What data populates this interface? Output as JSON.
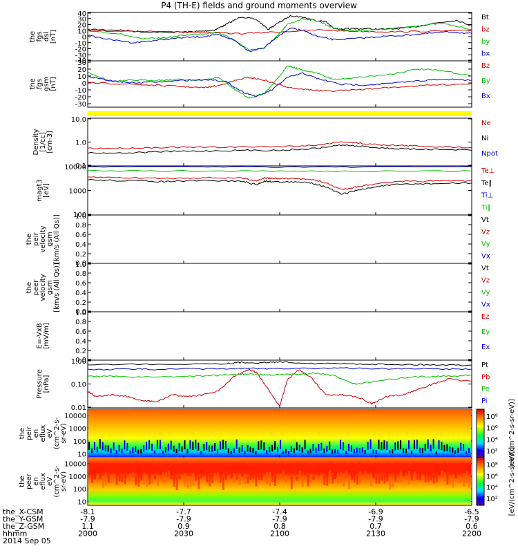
{
  "title": "P4 (TH-E) fields and ground moments overview",
  "chart_data": {
    "type": "line",
    "time_axis": {
      "rows": [
        {
          "label": "the_X-CSM",
          "values": [
            "-8.1",
            "-7.7",
            "-7.4",
            "-6.9",
            "-6.5"
          ]
        },
        {
          "label": "the_Y-GSM",
          "values": [
            "-7.9",
            "-7.9",
            "-7.9",
            "-7.9",
            "-7.9"
          ]
        },
        {
          "label": "the_Z-GSM",
          "values": [
            "1.1",
            "0.9",
            "0.8",
            "0.7",
            "0.6"
          ]
        },
        {
          "label": "hhmm",
          "values": [
            "2000",
            "2030",
            "2100",
            "2130",
            "2200"
          ]
        }
      ],
      "date": "2014 Sep 05"
    },
    "panels": [
      {
        "id": "fgs-dsl",
        "ylabel": [
          "the",
          "fgs",
          "dsl",
          "[nT]"
        ],
        "ticks": [
          "40",
          "30",
          "20",
          "10",
          "0",
          "-10",
          "-20",
          "-30",
          "-40"
        ],
        "ylim": [
          -40,
          40
        ],
        "legend": [
          {
            "name": "Bt",
            "color": "#000000"
          },
          {
            "name": "bz",
            "color": "#d00000"
          },
          {
            "name": "by",
            "color": "#00c000"
          },
          {
            "name": "bx",
            "color": "#0000d0"
          }
        ]
      },
      {
        "id": "fgs-gsm",
        "ylabel": [
          "the",
          "fgs",
          "gsm",
          "[nT]"
        ],
        "ticks": [
          "30",
          "20",
          "10",
          "0",
          "-10",
          "-20",
          "-30"
        ],
        "ylim": [
          -35,
          32
        ],
        "legend": [
          {
            "name": "Bz",
            "color": "#d00000"
          },
          {
            "name": "By",
            "color": "#00c000"
          },
          {
            "name": "Bx",
            "color": "#0000d0"
          }
        ]
      },
      {
        "id": "density",
        "ylabel": [
          "Density",
          "[1/cc]",
          "[cm-3]"
        ],
        "ticks": [
          "10.0",
          "1.0",
          "0.1"
        ],
        "ylim": [
          0.1,
          10
        ],
        "log": true,
        "legend": [
          {
            "name": "Ne",
            "color": "#d00000"
          },
          {
            "name": "Ni",
            "color": "#000000"
          },
          {
            "name": "Npot",
            "color": "#0000d0"
          }
        ]
      },
      {
        "id": "temperature",
        "ylabel": [
          "magt3",
          "[eV]"
        ],
        "ticks": [
          "10000",
          "1000",
          "100"
        ],
        "ylim": [
          100,
          10000
        ],
        "log": true,
        "legend": [
          {
            "name": "Te⊥",
            "color": "#d00000"
          },
          {
            "name": "Te∥",
            "color": "#000000"
          },
          {
            "name": "Ti⊥",
            "color": "#0000d0"
          },
          {
            "name": "Ti∥",
            "color": "#00c000"
          }
        ]
      },
      {
        "id": "peir-velocity",
        "ylabel": [
          "the",
          "peir",
          "velocity",
          "gsm",
          "[km/s (All Qs)]"
        ],
        "ticks": [
          "1.0",
          "0.8",
          "0.6",
          "0.4",
          "0.2",
          "0.0"
        ],
        "ylim": [
          0,
          1
        ],
        "legend": [
          {
            "name": "Vt",
            "color": "#000000"
          },
          {
            "name": "Vz",
            "color": "#d00000"
          },
          {
            "name": "Vy",
            "color": "#00c000"
          },
          {
            "name": "Vx",
            "color": "#0000d0"
          }
        ]
      },
      {
        "id": "peer-velocity",
        "ylabel": [
          "the",
          "peer",
          "velocity",
          "gsm",
          "[km/s (All Qs)]"
        ],
        "ticks": [
          "1.0",
          "0.8",
          "0.6",
          "0.4",
          "0.2",
          "0.0"
        ],
        "ylim": [
          0,
          1
        ],
        "legend": [
          {
            "name": "Vt",
            "color": "#000000"
          },
          {
            "name": "Vz",
            "color": "#d00000"
          },
          {
            "name": "Vy",
            "color": "#00c000"
          },
          {
            "name": "Vx",
            "color": "#0000d0"
          }
        ]
      },
      {
        "id": "efield",
        "ylabel": [
          "E=-VxB",
          "[mV/m]"
        ],
        "ticks": [
          "1.0",
          "0.8",
          "0.6",
          "0.4",
          "0.2",
          "0.0"
        ],
        "ylim": [
          0,
          1
        ],
        "legend": [
          {
            "name": "Ez",
            "color": "#d00000"
          },
          {
            "name": "Ey",
            "color": "#00c000"
          },
          {
            "name": "Ex",
            "color": "#0000d0"
          }
        ]
      },
      {
        "id": "pressure",
        "ylabel": [
          "Pressure",
          "[nPa]"
        ],
        "ticks": [
          "1.00",
          "0.10",
          "0.01"
        ],
        "ylim": [
          0.01,
          1
        ],
        "log": true,
        "legend": [
          {
            "name": "Pt",
            "color": "#000000"
          },
          {
            "name": "Pb",
            "color": "#d00000"
          },
          {
            "name": "Pe",
            "color": "#00c000"
          },
          {
            "name": "Pi",
            "color": "#0000d0"
          }
        ]
      },
      {
        "id": "peir-eflux",
        "ylabel": [
          "the",
          "peir",
          "en",
          "eflux",
          "eV",
          "(cm^2-s-",
          "sr-eV)"
        ],
        "ticks": [
          "10000",
          "1000",
          "100",
          "10"
        ],
        "ylim": [
          5,
          30000
        ],
        "log": true
      },
      {
        "id": "peer-eflux",
        "ylabel": [
          "the",
          "peer",
          "en",
          "eflux",
          "eV",
          "(cm^2-s-",
          "sr-eV)"
        ],
        "ticks": [
          "10000",
          "1000",
          "100",
          "10"
        ],
        "ylim": [
          5,
          30000
        ],
        "log": true
      }
    ],
    "colorbars": [
      {
        "ticks": [
          "10⁸",
          "10⁶",
          "10⁴",
          "10²"
        ],
        "label": "[eV/(cm^2-s-sr-eV)]"
      },
      {
        "ticks": [
          "10⁸",
          "10⁶",
          "10⁴",
          "10²"
        ],
        "label": "[eV/(cm^2-s-sr-eV)]"
      }
    ],
    "series": [
      {
        "panel": "fgs-dsl",
        "name": "Bt",
        "color": "#000000",
        "x": [
          0,
          8,
          14,
          20,
          26,
          30,
          33,
          36,
          40,
          44,
          47,
          50,
          53,
          56,
          60,
          62,
          64,
          66,
          68,
          72,
          78,
          84,
          90,
          96,
          100
        ],
        "y": [
          12,
          11,
          8,
          7,
          8,
          9,
          11,
          20,
          33,
          28,
          12,
          24,
          35,
          32,
          26,
          25,
          14,
          12,
          13,
          13,
          12,
          15,
          22,
          27,
          18
        ]
      },
      {
        "panel": "fgs-dsl",
        "name": "bz",
        "color": "#d00000",
        "x": [
          0,
          15,
          30,
          40,
          50,
          60,
          70,
          80,
          90,
          100
        ],
        "y": [
          10,
          9,
          7,
          5,
          8,
          11,
          9,
          8,
          9,
          10
        ]
      },
      {
        "panel": "fgs-dsl",
        "name": "by",
        "color": "#00c000",
        "x": [
          0,
          8,
          14,
          20,
          26,
          30,
          34,
          38,
          42,
          46,
          50,
          52,
          56,
          60,
          64,
          68,
          74,
          80,
          86,
          92,
          100
        ],
        "y": [
          10,
          5,
          -4,
          -2,
          3,
          5,
          7,
          -5,
          -22,
          -19,
          5,
          20,
          30,
          26,
          14,
          10,
          11,
          14,
          18,
          22,
          12
        ]
      },
      {
        "panel": "fgs-dsl",
        "name": "bx",
        "color": "#0000d0",
        "x": [
          0,
          6,
          12,
          18,
          24,
          30,
          34,
          38,
          42,
          46,
          50,
          53,
          56,
          60,
          64,
          70,
          76,
          82,
          88,
          94,
          100
        ],
        "y": [
          2,
          -5,
          -10,
          -6,
          -2,
          0,
          3,
          -5,
          -24,
          -18,
          3,
          14,
          10,
          0,
          -5,
          -3,
          0,
          2,
          5,
          8,
          5
        ]
      },
      {
        "panel": "fgs-gsm",
        "name": "Bz",
        "color": "#d00000",
        "x": [
          0,
          8,
          16,
          24,
          30,
          34,
          38,
          42,
          46,
          50,
          54,
          58,
          62,
          70,
          80,
          90,
          100
        ],
        "y": [
          0,
          -1,
          -3,
          -5,
          -7,
          -4,
          3,
          8,
          4,
          -3,
          -8,
          -10,
          -12,
          -10,
          -6,
          -3,
          -1
        ]
      },
      {
        "panel": "fgs-gsm",
        "name": "By",
        "color": "#00c000",
        "x": [
          0,
          6,
          12,
          18,
          24,
          30,
          34,
          38,
          42,
          46,
          50,
          52,
          54,
          56,
          60,
          64,
          70,
          78,
          86,
          92,
          100
        ],
        "y": [
          16,
          2,
          4,
          4,
          5,
          4,
          8,
          -8,
          -22,
          -15,
          10,
          25,
          22,
          18,
          14,
          5,
          8,
          12,
          20,
          18,
          10
        ]
      },
      {
        "panel": "fgs-gsm",
        "name": "Bx",
        "color": "#0000d0",
        "x": [
          0,
          6,
          12,
          20,
          26,
          32,
          36,
          40,
          44,
          48,
          52,
          56,
          60,
          66,
          72,
          80,
          88,
          94,
          100
        ],
        "y": [
          10,
          3,
          0,
          2,
          4,
          5,
          2,
          -12,
          -20,
          -10,
          8,
          14,
          6,
          -2,
          -3,
          0,
          4,
          5,
          4
        ]
      },
      {
        "panel": "density",
        "name": "Ne",
        "color": "#d00000",
        "x": [
          0,
          10,
          20,
          30,
          40,
          50,
          60,
          66,
          72,
          78,
          84,
          90,
          100
        ],
        "y": [
          0.55,
          0.55,
          0.6,
          0.6,
          0.62,
          0.65,
          0.75,
          1.05,
          0.85,
          0.75,
          0.7,
          0.65,
          0.6
        ]
      },
      {
        "panel": "density",
        "name": "Ni",
        "color": "#000000",
        "x": [
          0,
          10,
          20,
          30,
          40,
          50,
          60,
          66,
          72,
          78,
          84,
          90,
          100
        ],
        "y": [
          0.35,
          0.35,
          0.4,
          0.42,
          0.45,
          0.45,
          0.55,
          0.75,
          0.65,
          0.55,
          0.5,
          0.5,
          0.45
        ]
      },
      {
        "panel": "temperature",
        "name": "Te⊥",
        "color": "#d00000",
        "x": [
          0,
          10,
          20,
          30,
          40,
          44,
          46,
          48,
          52,
          58,
          62,
          66,
          70,
          76,
          82,
          90,
          100
        ],
        "y": [
          3500,
          3300,
          3100,
          3300,
          3200,
          2500,
          3200,
          3100,
          3000,
          2900,
          2000,
          1100,
          1400,
          2000,
          2300,
          2400,
          2500
        ]
      },
      {
        "panel": "temperature",
        "name": "Te∥",
        "color": "#000000",
        "x": [
          0,
          10,
          20,
          30,
          40,
          44,
          46,
          48,
          52,
          58,
          62,
          66,
          70,
          76,
          82,
          90,
          100
        ],
        "y": [
          2700,
          2500,
          2300,
          2500,
          2400,
          1700,
          2400,
          2300,
          2200,
          2100,
          1400,
          700,
          1000,
          1500,
          1800,
          1900,
          2000
        ]
      },
      {
        "panel": "temperature",
        "name": "Ti⊥",
        "color": "#0000d0",
        "x": [
          0,
          25,
          50,
          75,
          100
        ],
        "y": [
          9500,
          9300,
          9200,
          9200,
          9400
        ]
      },
      {
        "panel": "temperature",
        "name": "Ti∥",
        "color": "#00c000",
        "x": [
          0,
          25,
          50,
          75,
          100
        ],
        "y": [
          6300,
          6200,
          6000,
          6100,
          6200
        ]
      },
      {
        "panel": "pressure",
        "name": "Pt",
        "color": "#000000",
        "x": [
          0,
          20,
          36,
          40,
          46,
          50,
          60,
          70,
          80,
          90,
          100
        ],
        "y": [
          0.65,
          0.68,
          0.72,
          0.8,
          0.78,
          0.85,
          0.72,
          0.7,
          0.66,
          0.64,
          0.62
        ]
      },
      {
        "panel": "pressure",
        "name": "Pb",
        "color": "#d00000",
        "x": [
          0,
          2,
          6,
          10,
          14,
          18,
          22,
          26,
          30,
          34,
          38,
          42,
          44,
          46,
          50,
          52,
          55,
          58,
          62,
          66,
          70,
          74,
          78,
          82,
          86,
          90,
          94,
          100
        ],
        "y": [
          0.05,
          0.03,
          0.035,
          0.03,
          0.02,
          0.018,
          0.035,
          0.03,
          0.035,
          0.05,
          0.2,
          0.4,
          0.3,
          0.1,
          0.012,
          0.15,
          0.4,
          0.2,
          0.035,
          0.035,
          0.03,
          0.015,
          0.03,
          0.035,
          0.06,
          0.1,
          0.16,
          0.13
        ]
      },
      {
        "panel": "pressure",
        "name": "Pe",
        "color": "#00c000",
        "x": [
          0,
          10,
          20,
          30,
          36,
          40,
          44,
          48,
          52,
          60,
          64,
          70,
          78,
          86,
          94,
          100
        ],
        "y": [
          0.22,
          0.2,
          0.2,
          0.22,
          0.24,
          0.26,
          0.25,
          0.24,
          0.25,
          0.28,
          0.22,
          0.1,
          0.15,
          0.2,
          0.22,
          0.23
        ]
      },
      {
        "panel": "pressure",
        "name": "Pi",
        "color": "#0000d0",
        "x": [
          0,
          10,
          20,
          30,
          40,
          50,
          60,
          70,
          80,
          90,
          100
        ],
        "y": [
          0.4,
          0.42,
          0.42,
          0.43,
          0.44,
          0.45,
          0.46,
          0.45,
          0.44,
          0.43,
          0.42
        ]
      }
    ]
  }
}
